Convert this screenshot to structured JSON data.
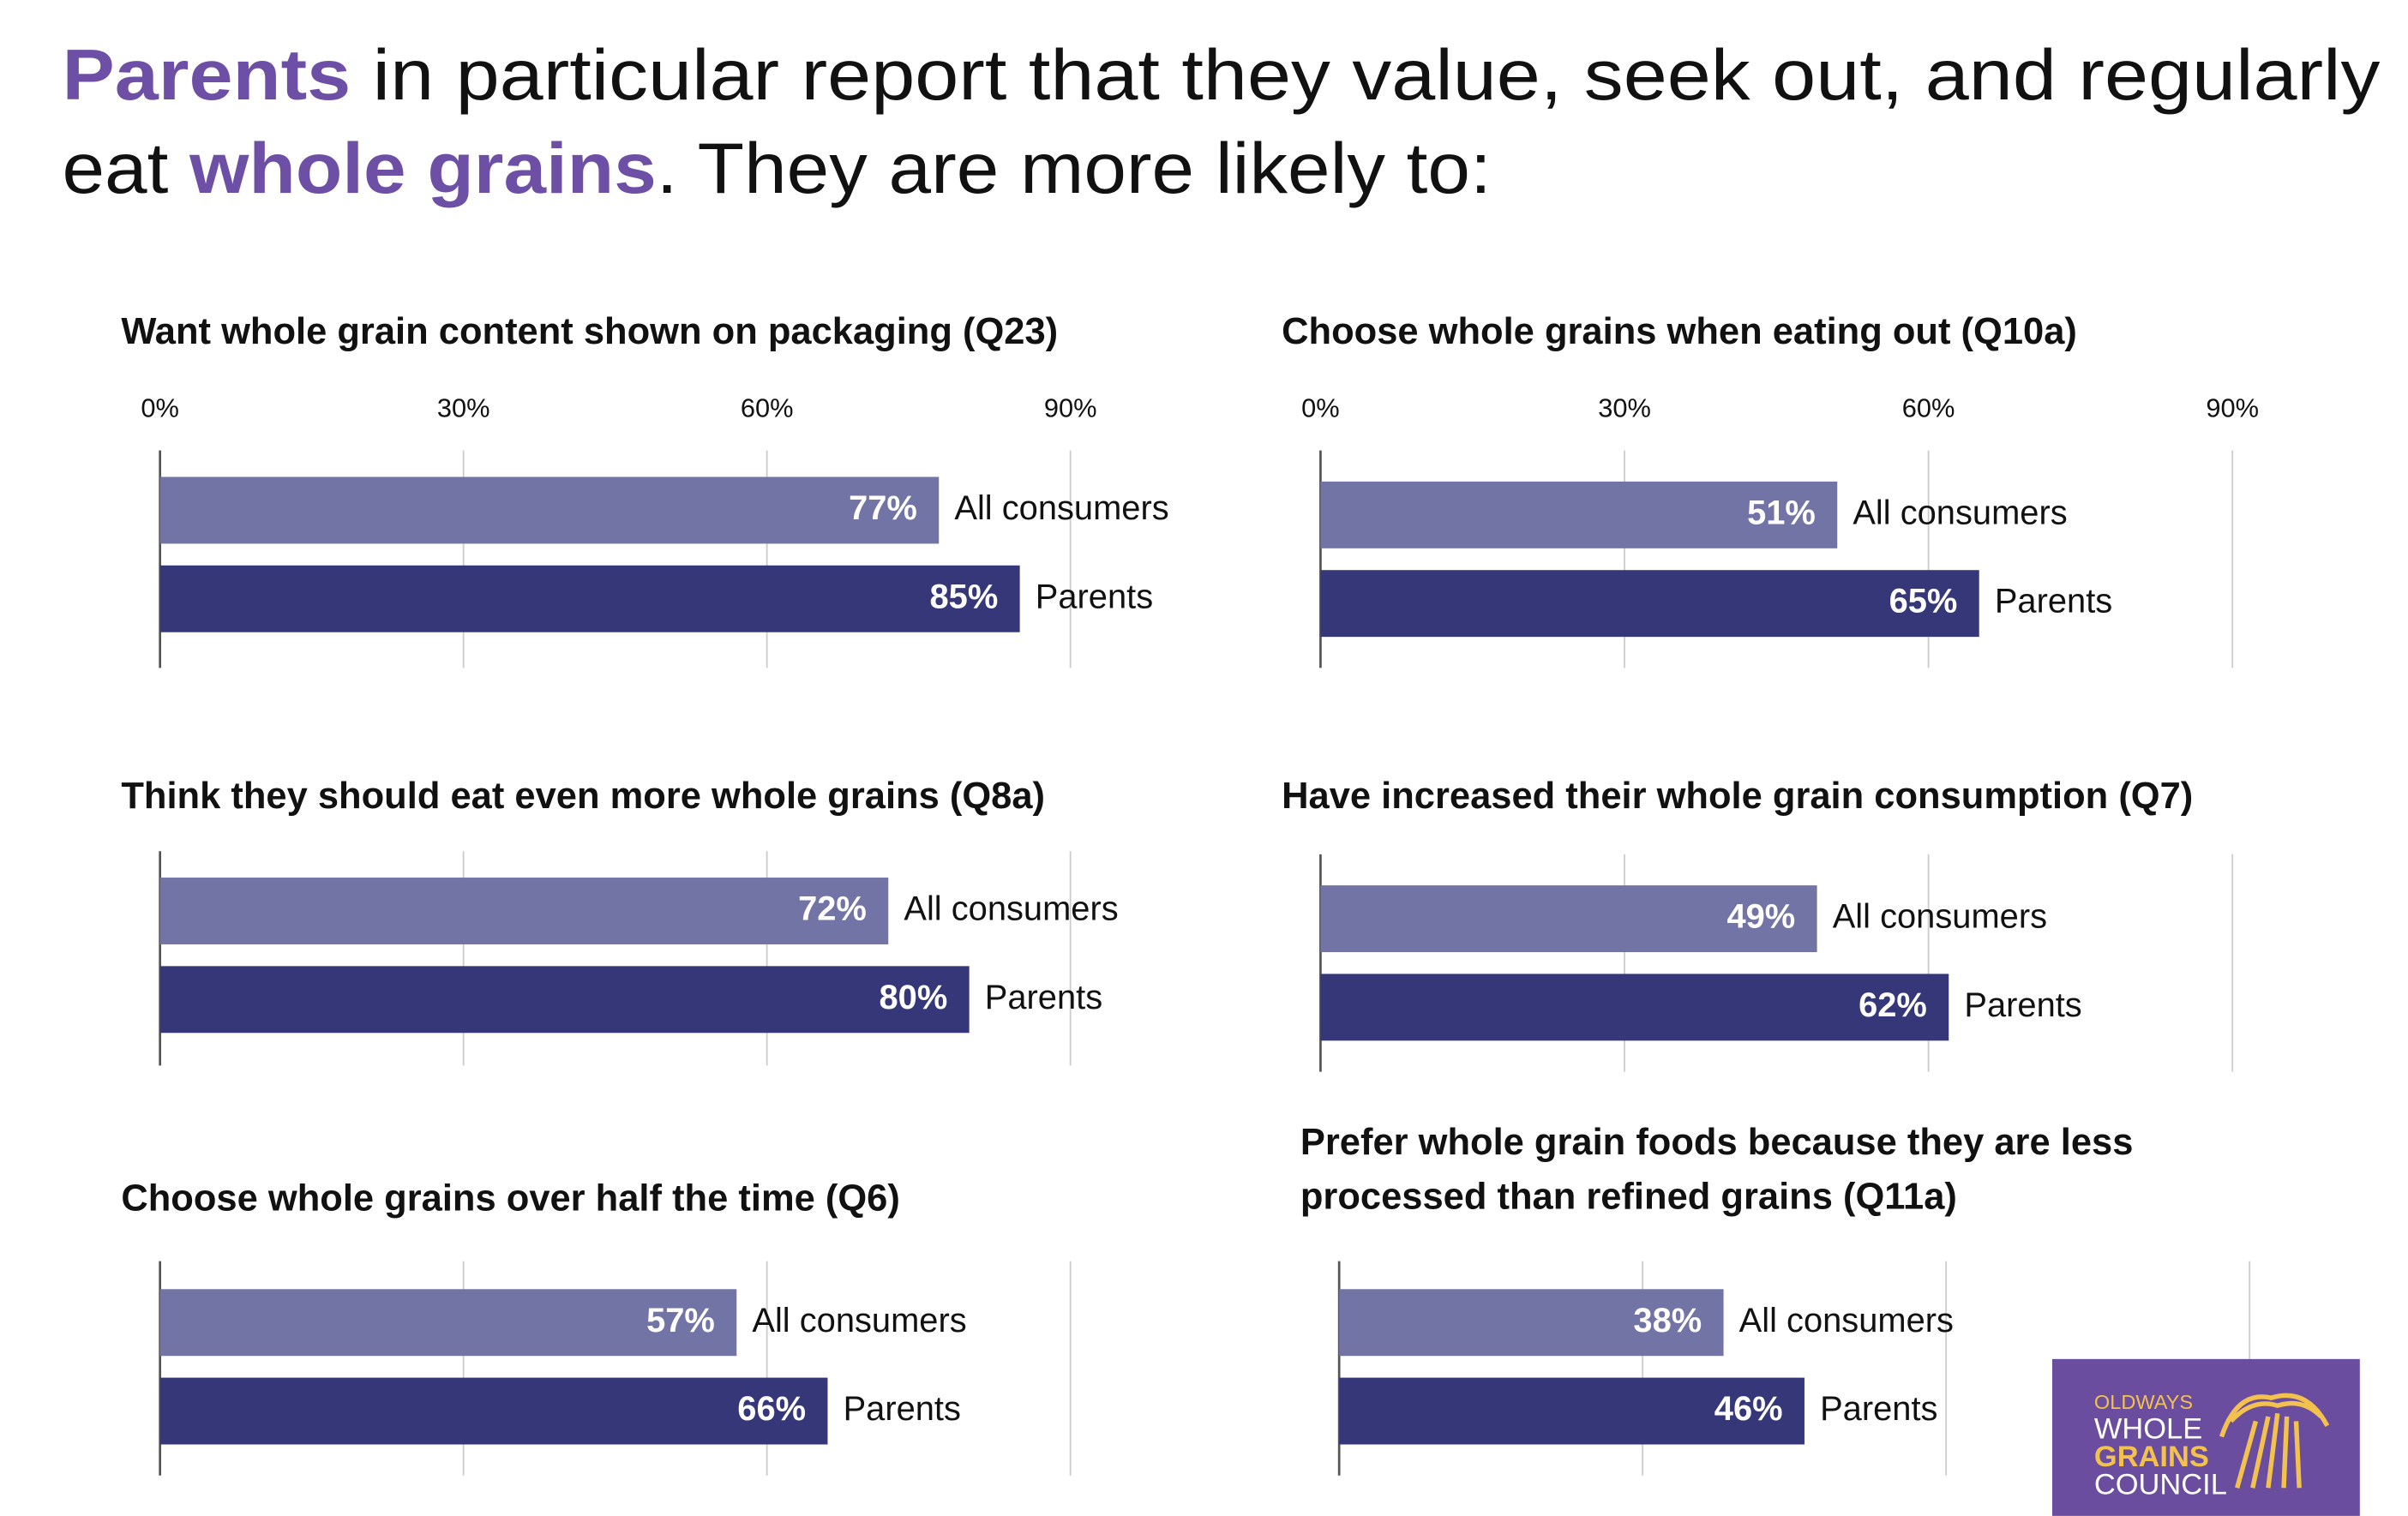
{
  "headline": [
    "Parents",
    " in particular report that they value, seek out, and regularly",
    "eat ",
    "whole grains",
    ". They are more likely to:"
  ],
  "logo": [
    "OLDWAYS",
    "WHOLE",
    "GRAINS",
    "COUNCIL"
  ],
  "chart_data": [
    {
      "type": "bar",
      "title": "Want whole grain content shown on packaging (Q23)",
      "categories": [
        "All consumers",
        "Parents"
      ],
      "values": [
        77,
        85
      ],
      "value_labels": [
        "77%",
        "85%"
      ],
      "colors": [
        "#7374a6",
        "#353779"
      ],
      "xlim": [
        0,
        90
      ],
      "xticks": [
        {
          "value": 0,
          "label": "0%"
        },
        {
          "value": 30,
          "label": "30%"
        },
        {
          "value": 60,
          "label": "60%"
        },
        {
          "value": 90,
          "label": "90%"
        }
      ],
      "grid": true
    },
    {
      "type": "bar",
      "title": "Choose whole grains when eating out (Q10a)",
      "categories": [
        "All consumers",
        "Parents"
      ],
      "values": [
        51,
        65
      ],
      "value_labels": [
        "51%",
        "65%"
      ],
      "colors": [
        "#7374a6",
        "#353779"
      ],
      "xlim": [
        0,
        90
      ],
      "xticks": [
        {
          "value": 0,
          "label": "0%"
        },
        {
          "value": 30,
          "label": "30%"
        },
        {
          "value": 60,
          "label": "60%"
        },
        {
          "value": 90,
          "label": "90%"
        }
      ],
      "grid": true
    },
    {
      "type": "bar",
      "title": "Think they should eat even more whole grains (Q8a)",
      "categories": [
        "All consumers",
        "Parents"
      ],
      "values": [
        72,
        80
      ],
      "value_labels": [
        "72%",
        "80%"
      ],
      "colors": [
        "#7374a6",
        "#353779"
      ],
      "xlim": [
        0,
        90
      ],
      "xticks": [
        0,
        30,
        60,
        90
      ],
      "grid": true
    },
    {
      "type": "bar",
      "title": "Have increased their whole grain consumption (Q7)",
      "categories": [
        "All consumers",
        "Parents"
      ],
      "values": [
        49,
        62
      ],
      "value_labels": [
        "49%",
        "62%"
      ],
      "colors": [
        "#7374a6",
        "#353779"
      ],
      "xlim": [
        0,
        90
      ],
      "xticks": [
        0,
        30,
        60,
        90
      ],
      "grid": true
    },
    {
      "type": "bar",
      "title": "Choose whole grains over half the time (Q6)",
      "categories": [
        "All consumers",
        "Parents"
      ],
      "values": [
        57,
        66
      ],
      "value_labels": [
        "57%",
        "66%"
      ],
      "colors": [
        "#7374a6",
        "#353779"
      ],
      "xlim": [
        0,
        90
      ],
      "xticks": [
        0,
        30,
        60,
        90
      ],
      "grid": true
    },
    {
      "type": "bar",
      "title": [
        "Prefer whole grain foods because they are less",
        "processed than refined grains (Q11a)"
      ],
      "categories": [
        "All consumers",
        "Parents"
      ],
      "values": [
        38,
        46
      ],
      "value_labels": [
        "38%",
        "46%"
      ],
      "colors": [
        "#7374a6",
        "#353779"
      ],
      "xlim": [
        0,
        90
      ],
      "xticks": [
        0,
        30,
        60,
        90
      ],
      "grid": true
    }
  ]
}
